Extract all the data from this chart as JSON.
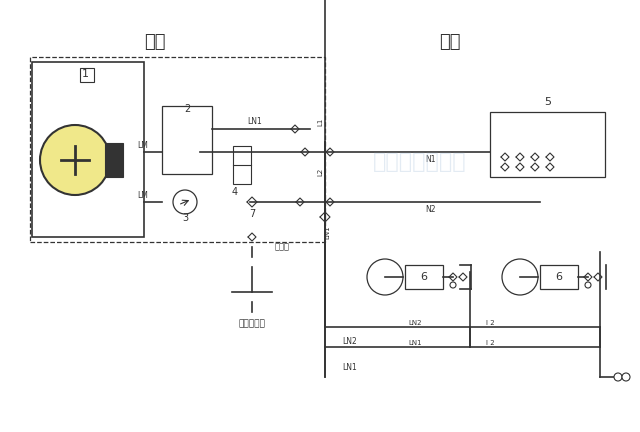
{
  "bg_color": "#f5f5f0",
  "line_color": "#333333",
  "label_outdoor": "室外",
  "label_indoor": "室内",
  "label_water": "自来水补水",
  "label_inject": "注液口",
  "watermark": "空气源热泵机组",
  "node_labels": {
    "1": "1",
    "2": "2",
    "3": "3",
    "4": "4",
    "5": "5",
    "6": "6",
    "7": "7"
  },
  "pipe_labels": [
    "LN1",
    "LN2",
    "LN1",
    "LN2",
    "N1",
    "N2",
    "L1",
    "L2",
    "LN1",
    "LM",
    "LM"
  ],
  "title_fontsize": 13,
  "label_fontsize": 7,
  "line_width": 1.2
}
